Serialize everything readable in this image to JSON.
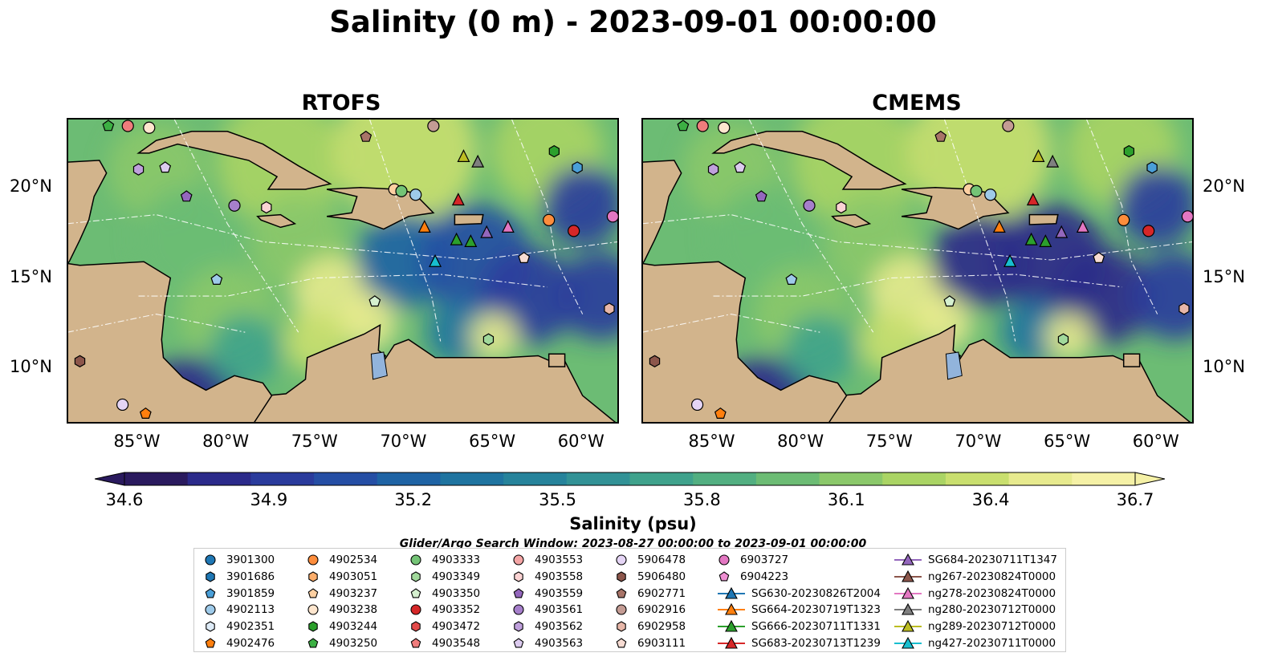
{
  "suptitle": "Salinity (0 m) - 2023-09-01 00:00:00",
  "panels": [
    {
      "title": "RTOFS"
    },
    {
      "title": "CMEMS"
    }
  ],
  "axes": {
    "lon_ticks": [
      "85°W",
      "80°W",
      "75°W",
      "70°W",
      "65°W",
      "60°W"
    ],
    "lat_ticks": [
      "20°N",
      "15°N",
      "10°N"
    ]
  },
  "colorbar": {
    "label": "Salinity (psu)",
    "ticks": [
      "34.6",
      "34.9",
      "35.2",
      "35.5",
      "35.8",
      "36.1",
      "36.4",
      "36.7"
    ],
    "colors": [
      "#2a1a5e",
      "#2b2a8a",
      "#2a3b9c",
      "#254ea4",
      "#1e63a4",
      "#1f74a0",
      "#26839b",
      "#329296",
      "#3fa28c",
      "#52af81",
      "#6cbc74",
      "#8bc86a",
      "#aad464",
      "#c9df6e",
      "#e7ea8e",
      "#f5f1a6"
    ]
  },
  "search_window": "Glider/Argo Search Window: 2023-08-27 00:00:00 to 2023-09-01 00:00:00",
  "legend": {
    "columns": [
      [
        {
          "label": "3901300",
          "color": "#1f77b4",
          "marker": "circle"
        },
        {
          "label": "3901686",
          "color": "#1f77b4",
          "marker": "hexagon"
        },
        {
          "label": "3901859",
          "color": "#4a9fd8",
          "marker": "pentagon"
        },
        {
          "label": "4902113",
          "color": "#9ecae9",
          "marker": "circle"
        },
        {
          "label": "4902351",
          "color": "#deebf7",
          "marker": "hexagon"
        },
        {
          "label": "4902476",
          "color": "#ff7f0e",
          "marker": "pentagon"
        }
      ],
      [
        {
          "label": "4902534",
          "color": "#fd8d3c",
          "marker": "circle"
        },
        {
          "label": "4903051",
          "color": "#fdae6b",
          "marker": "hexagon"
        },
        {
          "label": "4903237",
          "color": "#fdd0a2",
          "marker": "pentagon"
        },
        {
          "label": "4903238",
          "color": "#fee6ce",
          "marker": "circle"
        },
        {
          "label": "4903244",
          "color": "#2ca02c",
          "marker": "hexagon"
        },
        {
          "label": "4903250",
          "color": "#3cb043",
          "marker": "pentagon"
        }
      ],
      [
        {
          "label": "4903333",
          "color": "#74c476",
          "marker": "circle"
        },
        {
          "label": "4903349",
          "color": "#a1d99b",
          "marker": "hexagon"
        },
        {
          "label": "4903350",
          "color": "#d5f0cf",
          "marker": "pentagon"
        },
        {
          "label": "4903352",
          "color": "#d62728",
          "marker": "circle"
        },
        {
          "label": "4903472",
          "color": "#e34a4a",
          "marker": "hexagon"
        },
        {
          "label": "4903548",
          "color": "#f07c7c",
          "marker": "pentagon"
        }
      ],
      [
        {
          "label": "4903553",
          "color": "#f4a5a5",
          "marker": "circle"
        },
        {
          "label": "4903558",
          "color": "#fbd3d3",
          "marker": "hexagon"
        },
        {
          "label": "4903559",
          "color": "#9467bd",
          "marker": "pentagon"
        },
        {
          "label": "4903561",
          "color": "#a67fcb",
          "marker": "circle"
        },
        {
          "label": "4903562",
          "color": "#bfa0dc",
          "marker": "hexagon"
        },
        {
          "label": "4903563",
          "color": "#dccbef",
          "marker": "pentagon"
        }
      ],
      [
        {
          "label": "5906478",
          "color": "#e5d5f5",
          "marker": "circle"
        },
        {
          "label": "5906480",
          "color": "#8c564b",
          "marker": "hexagon"
        },
        {
          "label": "6902771",
          "color": "#a87468",
          "marker": "pentagon"
        },
        {
          "label": "6902916",
          "color": "#c49c94",
          "marker": "circle"
        },
        {
          "label": "6902958",
          "color": "#e7b7a9",
          "marker": "hexagon"
        },
        {
          "label": "6903111",
          "color": "#f7dcd3",
          "marker": "pentagon"
        }
      ],
      [
        {
          "label": "6903727",
          "color": "#e377c2",
          "marker": "circle"
        },
        {
          "label": "6904223",
          "color": "#ee8fd2",
          "marker": "pentagon"
        },
        {
          "label": "SG630-20230826T2004",
          "color": "#1f77b4",
          "marker": "triangle-line"
        },
        {
          "label": "SG664-20230719T1323",
          "color": "#ff7f0e",
          "marker": "triangle-line"
        },
        {
          "label": "SG666-20230711T1331",
          "color": "#2ca02c",
          "marker": "triangle-line"
        },
        {
          "label": "SG683-20230713T1239",
          "color": "#d62728",
          "marker": "triangle-line"
        }
      ],
      [
        {
          "label": "SG684-20230711T1347",
          "color": "#9467bd",
          "marker": "triangle-line"
        },
        {
          "label": "ng267-20230824T0000",
          "color": "#8c564b",
          "marker": "triangle-line"
        },
        {
          "label": "ng278-20230824T0000",
          "color": "#e377c2",
          "marker": "triangle-line"
        },
        {
          "label": "ng280-20230712T0000",
          "color": "#7f7f7f",
          "marker": "triangle-line"
        },
        {
          "label": "ng289-20230712T0000",
          "color": "#bcbd22",
          "marker": "triangle-line"
        },
        {
          "label": "ng427-20230711T0000",
          "color": "#17becf",
          "marker": "triangle-line"
        }
      ]
    ]
  },
  "map_markers": [
    {
      "id": "4903250",
      "color": "#3cb043",
      "marker": "pentagon",
      "lon": -86.7,
      "lat": 23.4
    },
    {
      "id": "4903548",
      "color": "#f07c7c",
      "marker": "circle",
      "lon": -85.6,
      "lat": 23.4
    },
    {
      "id": "4903238",
      "color": "#fee6ce",
      "marker": "circle",
      "lon": -84.4,
      "lat": 23.3
    },
    {
      "id": "4903553",
      "color": "#c49c94",
      "marker": "circle",
      "lon": -68.4,
      "lat": 23.4
    },
    {
      "id": "6902771",
      "color": "#a87468",
      "marker": "pentagon",
      "lon": -72.2,
      "lat": 22.8
    },
    {
      "id": "4903559",
      "color": "#bfa0dc",
      "marker": "hexagon",
      "lon": -85.0,
      "lat": 21.0
    },
    {
      "id": "4903563",
      "color": "#dccbef",
      "marker": "pentagon",
      "lon": -83.5,
      "lat": 21.1
    },
    {
      "id": "4903561",
      "color": "#9467bd",
      "marker": "pentagon",
      "lon": -82.3,
      "lat": 19.5
    },
    {
      "id": "4903562",
      "color": "#a67fcb",
      "marker": "circle",
      "lon": -79.6,
      "lat": 19.0
    },
    {
      "id": "4903558",
      "color": "#fbd3d3",
      "marker": "hexagon",
      "lon": -77.8,
      "lat": 18.9
    },
    {
      "id": "4903237",
      "color": "#fdd0a2",
      "marker": "circle",
      "lon": -70.6,
      "lat": 19.9
    },
    {
      "id": "4903333",
      "color": "#74c476",
      "marker": "circle",
      "lon": -70.2,
      "lat": 19.8
    },
    {
      "id": "4902113",
      "color": "#9ecae9",
      "marker": "circle",
      "lon": -69.4,
      "lat": 19.6
    },
    {
      "id": "4903244",
      "color": "#2ca02c",
      "marker": "hexagon",
      "lon": -61.6,
      "lat": 22.0
    },
    {
      "id": "3901686",
      "color": "#4a9fd8",
      "marker": "hexagon",
      "lon": -60.3,
      "lat": 21.1
    },
    {
      "id": "4902534",
      "color": "#fd8d3c",
      "marker": "circle",
      "lon": -61.9,
      "lat": 18.2
    },
    {
      "id": "4903352",
      "color": "#d62728",
      "marker": "circle",
      "lon": -60.5,
      "lat": 17.6
    },
    {
      "id": "6903727",
      "color": "#e377c2",
      "marker": "circle",
      "lon": -58.3,
      "lat": 18.4
    },
    {
      "id": "6902958",
      "color": "#e7b7a9",
      "marker": "hexagon",
      "lon": -58.5,
      "lat": 13.3
    },
    {
      "id": "6903111",
      "color": "#f7dcd3",
      "marker": "pentagon",
      "lon": -63.3,
      "lat": 16.1
    },
    {
      "id": "3901859",
      "color": "#9ecae9",
      "marker": "pentagon",
      "lon": -80.6,
      "lat": 14.9
    },
    {
      "id": "4903350",
      "color": "#d5f0cf",
      "marker": "pentagon",
      "lon": -71.7,
      "lat": 13.7
    },
    {
      "id": "4903349",
      "color": "#a1d99b",
      "marker": "hexagon",
      "lon": -65.3,
      "lat": 11.6
    },
    {
      "id": "5906480",
      "color": "#8c564b",
      "marker": "hexagon",
      "lon": -88.3,
      "lat": 10.4
    },
    {
      "id": "5906478",
      "color": "#e5d5f5",
      "marker": "circle",
      "lon": -85.9,
      "lat": 8.0
    },
    {
      "id": "4902476",
      "color": "#ff7f0e",
      "marker": "pentagon",
      "lon": -84.6,
      "lat": 7.5
    },
    {
      "id": "ng289",
      "color": "#bcbd22",
      "marker": "triangle",
      "lon": -66.7,
      "lat": 21.7
    },
    {
      "id": "ng280",
      "color": "#7f7f7f",
      "marker": "triangle",
      "lon": -65.9,
      "lat": 21.4
    },
    {
      "id": "SG683",
      "color": "#d62728",
      "marker": "triangle",
      "lon": -67.0,
      "lat": 19.3
    },
    {
      "id": "SG664",
      "color": "#ff7f0e",
      "marker": "triangle",
      "lon": -68.9,
      "lat": 17.8
    },
    {
      "id": "SG666a",
      "color": "#2ca02c",
      "marker": "triangle",
      "lon": -67.1,
      "lat": 17.1
    },
    {
      "id": "SG666b",
      "color": "#2ca02c",
      "marker": "triangle",
      "lon": -66.3,
      "lat": 17.0
    },
    {
      "id": "SG684",
      "color": "#9467bd",
      "marker": "triangle",
      "lon": -65.4,
      "lat": 17.5
    },
    {
      "id": "ng278",
      "color": "#e377c2",
      "marker": "triangle",
      "lon": -64.2,
      "lat": 17.8
    },
    {
      "id": "ng427",
      "color": "#17becf",
      "marker": "triangle",
      "lon": -68.3,
      "lat": 15.9
    }
  ]
}
